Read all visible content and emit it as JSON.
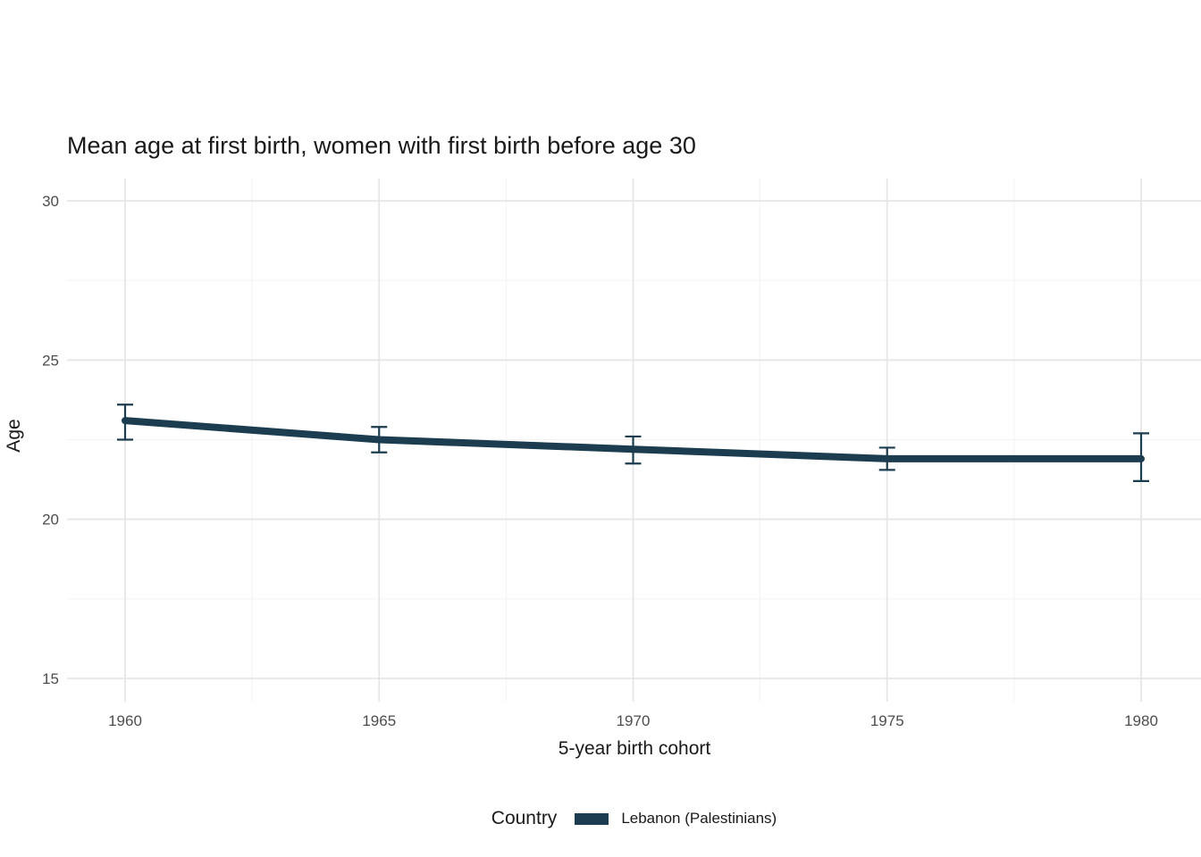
{
  "chart_data": {
    "type": "line",
    "title": "Mean age at first birth, women with first birth before age 30",
    "xlabel": "5-year birth cohort",
    "ylabel": "Age",
    "x": [
      1960,
      1965,
      1970,
      1975,
      1980
    ],
    "series": [
      {
        "name": "Lebanon (Palestinians)",
        "values": [
          23.1,
          22.5,
          22.2,
          21.9,
          21.9
        ],
        "error_upper": [
          23.6,
          22.9,
          22.6,
          22.25,
          22.7
        ],
        "error_lower": [
          22.5,
          22.1,
          21.75,
          21.55,
          21.2
        ],
        "color": "#1c3d4f"
      }
    ],
    "ylim": [
      14.3,
      30.7
    ],
    "yticks": [
      30,
      25,
      20,
      15
    ],
    "yticks_minor": [
      27.5,
      22.5,
      17.5
    ],
    "xticks": [
      1960,
      1965,
      1970,
      1975,
      1980
    ],
    "xticks_minor": [
      1962.5,
      1967.5,
      1972.5,
      1977.5
    ],
    "grid": true,
    "legend": {
      "title": "Country",
      "position": "bottom"
    }
  },
  "colors": {
    "line": "#1c3d4f",
    "grid_major": "#e6e6e6",
    "grid_minor": "#f2f2f2",
    "tick_text": "#4d4d4d",
    "title_text": "#1a1a1a",
    "background": "#ffffff"
  }
}
